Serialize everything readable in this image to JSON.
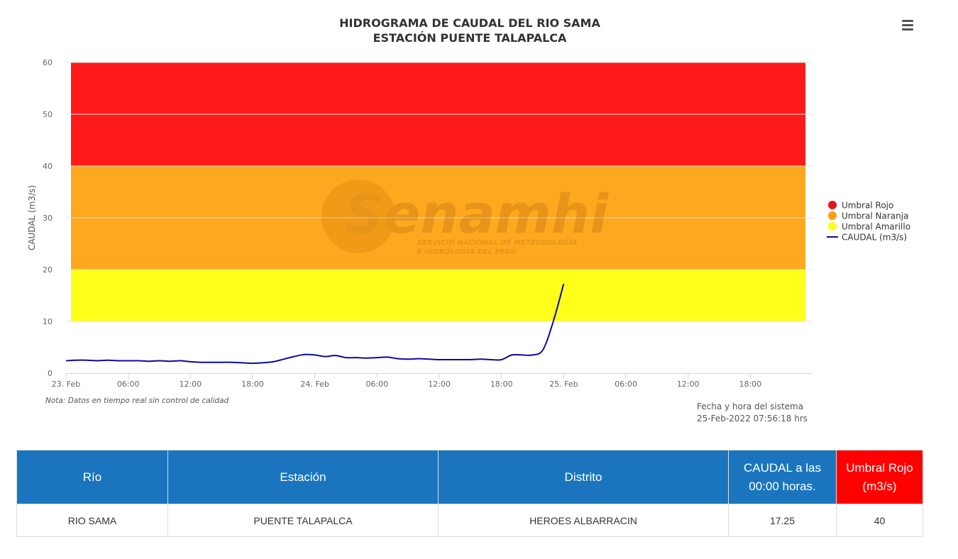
{
  "chart_data": {
    "type": "line",
    "title": "HIDROGRAMA DE CAUDAL DEL RIO SAMA",
    "subtitle": "ESTACIÓN PUENTE TALAPALCA",
    "ylabel": "CAUDAL (m3/s)",
    "xlabel": "",
    "ylim": [
      0,
      60
    ],
    "xlim": [
      "2022-02-23 00:00",
      "2022-02-26 00:00"
    ],
    "y_ticks": [
      0,
      10,
      20,
      30,
      40,
      50,
      60
    ],
    "x_ticks": [
      {
        "t": "2022-02-23 00:00",
        "label": "23. Feb"
      },
      {
        "t": "2022-02-23 06:00",
        "label": "06:00"
      },
      {
        "t": "2022-02-23 12:00",
        "label": "12:00"
      },
      {
        "t": "2022-02-23 18:00",
        "label": "18:00"
      },
      {
        "t": "2022-02-24 00:00",
        "label": "24. Feb"
      },
      {
        "t": "2022-02-24 06:00",
        "label": "06:00"
      },
      {
        "t": "2022-02-24 12:00",
        "label": "12:00"
      },
      {
        "t": "2022-02-24 18:00",
        "label": "18:00"
      },
      {
        "t": "2022-02-25 00:00",
        "label": "25. Feb"
      },
      {
        "t": "2022-02-25 06:00",
        "label": "06:00"
      },
      {
        "t": "2022-02-25 12:00",
        "label": "12:00"
      },
      {
        "t": "2022-02-25 18:00",
        "label": "18:00"
      }
    ],
    "grid": true,
    "legend_position": "right",
    "bands": [
      {
        "name": "Umbral Amarillo",
        "from": 10,
        "to": 20,
        "color": "#ffff1a"
      },
      {
        "name": "Umbral Naranja",
        "from": 20,
        "to": 40,
        "color": "#fda81f"
      },
      {
        "name": "Umbral Rojo",
        "from": 40,
        "to": 60,
        "color": "#ff1a1a"
      }
    ],
    "legend": [
      {
        "name": "Umbral Rojo",
        "color": "#e3141b",
        "symbol": "circle"
      },
      {
        "name": "Umbral Naranja",
        "color": "#f5a00e",
        "symbol": "circle"
      },
      {
        "name": "Umbral Amarillo",
        "color": "#ffff1a",
        "symbol": "circle"
      },
      {
        "name": "CAUDAL (m3/s)",
        "color": "#0a0aa0",
        "symbol": "line"
      }
    ],
    "series": [
      {
        "name": "CAUDAL (m3/s)",
        "color": "#0a0aa0",
        "points": [
          [
            "2022-02-23 00:00",
            2.4
          ],
          [
            "2022-02-23 01:00",
            2.5
          ],
          [
            "2022-02-23 02:00",
            2.5
          ],
          [
            "2022-02-23 03:00",
            2.4
          ],
          [
            "2022-02-23 04:00",
            2.5
          ],
          [
            "2022-02-23 05:00",
            2.4
          ],
          [
            "2022-02-23 06:00",
            2.4
          ],
          [
            "2022-02-23 07:00",
            2.4
          ],
          [
            "2022-02-23 08:00",
            2.3
          ],
          [
            "2022-02-23 09:00",
            2.4
          ],
          [
            "2022-02-23 10:00",
            2.3
          ],
          [
            "2022-02-23 11:00",
            2.4
          ],
          [
            "2022-02-23 12:00",
            2.2
          ],
          [
            "2022-02-23 13:00",
            2.1
          ],
          [
            "2022-02-23 14:00",
            2.1
          ],
          [
            "2022-02-23 15:00",
            2.1
          ],
          [
            "2022-02-23 16:00",
            2.1
          ],
          [
            "2022-02-23 17:00",
            2.0
          ],
          [
            "2022-02-23 18:00",
            1.9
          ],
          [
            "2022-02-23 19:00",
            2.0
          ],
          [
            "2022-02-23 20:00",
            2.2
          ],
          [
            "2022-02-23 21:00",
            2.7
          ],
          [
            "2022-02-23 22:00",
            3.2
          ],
          [
            "2022-02-23 23:00",
            3.6
          ],
          [
            "2022-02-24 00:00",
            3.5
          ],
          [
            "2022-02-24 01:00",
            3.2
          ],
          [
            "2022-02-24 02:00",
            3.4
          ],
          [
            "2022-02-24 03:00",
            3.0
          ],
          [
            "2022-02-24 04:00",
            3.0
          ],
          [
            "2022-02-24 05:00",
            2.9
          ],
          [
            "2022-02-24 06:00",
            3.0
          ],
          [
            "2022-02-24 07:00",
            3.1
          ],
          [
            "2022-02-24 08:00",
            2.8
          ],
          [
            "2022-02-24 09:00",
            2.7
          ],
          [
            "2022-02-24 10:00",
            2.8
          ],
          [
            "2022-02-24 11:00",
            2.7
          ],
          [
            "2022-02-24 12:00",
            2.6
          ],
          [
            "2022-02-24 13:00",
            2.6
          ],
          [
            "2022-02-24 14:00",
            2.6
          ],
          [
            "2022-02-24 15:00",
            2.6
          ],
          [
            "2022-02-24 16:00",
            2.7
          ],
          [
            "2022-02-24 17:00",
            2.6
          ],
          [
            "2022-02-24 18:00",
            2.6
          ],
          [
            "2022-02-24 19:00",
            3.5
          ],
          [
            "2022-02-24 20:00",
            3.5
          ],
          [
            "2022-02-24 21:00",
            3.5
          ],
          [
            "2022-02-24 22:00",
            4.5
          ],
          [
            "2022-02-24 23:00",
            10.0
          ],
          [
            "2022-02-25 00:00",
            17.25
          ]
        ]
      }
    ]
  },
  "note": "Nota: Datos en tiempo real sin control de calidad",
  "system_time": {
    "label": "Fecha y hora del sistema",
    "value": "25-Feb-2022 07:56:18 hrs"
  },
  "watermark": {
    "brand": "Senamhi",
    "line1": "SERVICIO NACIONAL DE METEOROLOGÍA",
    "line2": "E HIDROLOGÍA DEL PERÚ"
  },
  "table": {
    "headers": [
      "Río",
      "Estación",
      "Distrito",
      "CAUDAL a las 00:00 horas.",
      "Umbral Rojo (m3/s)"
    ],
    "row": [
      "RIO SAMA",
      "PUENTE TALAPALCA",
      "HEROES ALBARRACIN",
      "17.25",
      "40"
    ]
  }
}
